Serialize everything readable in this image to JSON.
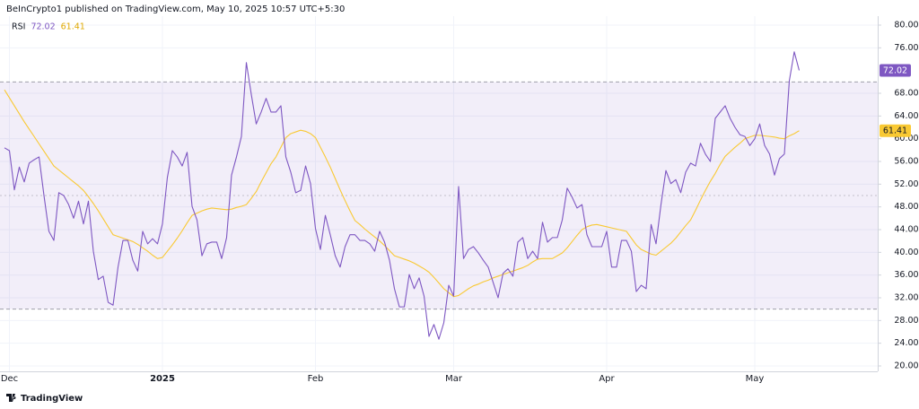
{
  "chart_data": {
    "type": "line",
    "title": "BeInCrypto1 published on TradingView.com, May 10, 2025 10:57 UTC+5:30",
    "source": "TradingView",
    "categories": [
      null,
      "Dec",
      null,
      null,
      null,
      null,
      null,
      null,
      null,
      null,
      null,
      null,
      null,
      null,
      null,
      null,
      null,
      null,
      null,
      null,
      null,
      null,
      null,
      null,
      null,
      null,
      null,
      null,
      null,
      null,
      null,
      null,
      "2025",
      null,
      null,
      null,
      null,
      null,
      null,
      null,
      null,
      null,
      null,
      null,
      null,
      null,
      null,
      null,
      null,
      null,
      null,
      null,
      null,
      null,
      null,
      null,
      null,
      null,
      null,
      null,
      null,
      null,
      null,
      "Feb",
      null,
      null,
      null,
      null,
      null,
      null,
      null,
      null,
      null,
      null,
      null,
      null,
      null,
      null,
      null,
      null,
      null,
      null,
      null,
      null,
      null,
      null,
      null,
      null,
      null,
      null,
      null,
      "Mar",
      null,
      null,
      null,
      null,
      null,
      null,
      null,
      null,
      null,
      null,
      null,
      null,
      null,
      null,
      null,
      null,
      null,
      null,
      null,
      null,
      null,
      null,
      null,
      null,
      null,
      null,
      null,
      null,
      null,
      null,
      "Apr",
      null,
      null,
      null,
      null,
      null,
      null,
      null,
      null,
      null,
      null,
      null,
      null,
      null,
      null,
      null,
      null,
      null,
      null,
      null,
      null,
      null,
      null,
      null,
      null,
      null,
      null,
      null,
      null,
      null,
      "May",
      null,
      null,
      null,
      null,
      null,
      null,
      null,
      null,
      null
    ],
    "series": [
      {
        "name": "RSI",
        "color": "#7e57c2",
        "values": [
          58.4,
          57.9,
          51.0,
          55.0,
          52.4,
          55.7,
          56.3,
          56.8,
          50.0,
          43.7,
          42.1,
          50.5,
          50.0,
          48.4,
          46.0,
          49.0,
          45.0,
          49.0,
          40.2,
          35.2,
          35.8,
          31.2,
          30.7,
          37.4,
          42.1,
          42.1,
          38.6,
          36.7,
          43.7,
          41.5,
          42.4,
          41.5,
          45.0,
          53.2,
          57.9,
          56.8,
          55.2,
          57.6,
          48.1,
          45.7,
          39.4,
          41.5,
          41.8,
          41.8,
          38.9,
          42.6,
          53.6,
          56.8,
          60.4,
          73.4,
          67.8,
          62.6,
          64.7,
          67.1,
          64.7,
          64.7,
          65.8,
          56.8,
          54.1,
          50.5,
          50.9,
          55.2,
          52.1,
          44.2,
          40.5,
          46.5,
          43.1,
          39.4,
          37.4,
          41.0,
          43.1,
          43.1,
          42.1,
          42.1,
          41.5,
          40.2,
          43.7,
          41.8,
          38.6,
          33.6,
          30.4,
          30.4,
          36.1,
          33.6,
          35.5,
          32.3,
          25.2,
          27.3,
          24.7,
          27.6,
          34.2,
          32.3,
          51.6,
          38.9,
          40.5,
          41.0,
          39.9,
          38.6,
          37.4,
          34.7,
          32.0,
          36.3,
          37.1,
          35.8,
          41.8,
          42.6,
          38.9,
          40.2,
          38.9,
          45.3,
          41.8,
          42.6,
          42.6,
          45.7,
          51.3,
          49.7,
          47.8,
          48.4,
          43.1,
          41.0,
          41.0,
          41.0,
          43.7,
          37.4,
          37.4,
          42.1,
          42.1,
          40.2,
          33.1,
          34.2,
          33.6,
          44.9,
          41.5,
          48.4,
          54.4,
          52.1,
          52.8,
          50.5,
          54.1,
          55.7,
          55.2,
          59.2,
          57.3,
          56.0,
          63.6,
          64.7,
          65.8,
          63.6,
          62.0,
          60.7,
          60.4,
          58.8,
          60.0,
          62.6,
          58.8,
          57.3,
          53.6,
          56.5,
          57.3,
          70.2,
          75.3,
          72.02
        ]
      },
      {
        "color": "#f9c933",
        "values": [
          68.6,
          67.2,
          65.8,
          64.4,
          63.0,
          61.7,
          60.4,
          59.1,
          57.8,
          56.5,
          55.2,
          54.5,
          53.8,
          53.1,
          52.4,
          51.7,
          50.9,
          49.8,
          48.6,
          47.3,
          45.9,
          44.5,
          43.1,
          42.8,
          42.5,
          42.2,
          41.9,
          41.4,
          40.8,
          40.2,
          39.5,
          38.9,
          39.1,
          40.2,
          41.3,
          42.5,
          43.8,
          45.2,
          46.5,
          46.9,
          47.3,
          47.6,
          47.8,
          47.7,
          47.6,
          47.5,
          47.6,
          47.9,
          48.1,
          48.4,
          49.5,
          50.7,
          52.4,
          54.0,
          55.6,
          56.8,
          58.5,
          60.2,
          60.9,
          61.2,
          61.5,
          61.3,
          60.9,
          60.2,
          58.5,
          56.8,
          55.0,
          53.0,
          51.0,
          49.1,
          47.3,
          45.6,
          44.9,
          44.1,
          43.4,
          42.7,
          42.0,
          41.2,
          40.3,
          39.4,
          39.1,
          38.8,
          38.5,
          38.1,
          37.6,
          37.1,
          36.5,
          35.6,
          34.6,
          33.6,
          32.9,
          32.2,
          32.4,
          33.0,
          33.6,
          34.1,
          34.4,
          34.8,
          35.1,
          35.5,
          35.8,
          36.1,
          36.4,
          36.7,
          37.0,
          37.3,
          37.7,
          38.3,
          38.8,
          38.9,
          38.9,
          38.9,
          39.4,
          39.9,
          40.8,
          41.9,
          43.0,
          44.0,
          44.5,
          44.8,
          44.9,
          44.7,
          44.5,
          44.3,
          44.1,
          43.9,
          43.7,
          42.5,
          41.3,
          40.5,
          40.1,
          39.7,
          39.5,
          40.2,
          40.9,
          41.6,
          42.5,
          43.6,
          44.7,
          45.7,
          47.4,
          49.2,
          50.9,
          52.5,
          53.9,
          55.5,
          56.9,
          57.7,
          58.5,
          59.2,
          60.0,
          60.3,
          60.6,
          60.6,
          60.5,
          60.4,
          60.3,
          60.1,
          60.0,
          60.5,
          60.9,
          61.41
        ]
      }
    ],
    "levels": [
      30,
      50,
      70
    ],
    "band_color": "#7e57c2",
    "ylim": [
      20,
      80
    ],
    "yticks": [
      {
        "value": 20,
        "label": "20.00"
      },
      {
        "value": 24,
        "label": "24.00"
      },
      {
        "value": 28,
        "label": "28.00"
      },
      {
        "value": 32,
        "label": "32.00"
      },
      {
        "value": 36,
        "label": "36.00"
      },
      {
        "value": 40,
        "label": "40.00"
      },
      {
        "value": 44,
        "label": "44.00"
      },
      {
        "value": 48,
        "label": "48.00"
      },
      {
        "value": 52,
        "label": "52.00"
      },
      {
        "value": 56,
        "label": "56.00"
      },
      {
        "value": 60,
        "label": "60.00"
      },
      {
        "value": 64,
        "label": "64.00"
      },
      {
        "value": 68,
        "label": "68.00"
      },
      {
        "value": 76,
        "label": "76.00"
      },
      {
        "value": 80,
        "label": "80.00"
      }
    ],
    "grid": true
  }
}
